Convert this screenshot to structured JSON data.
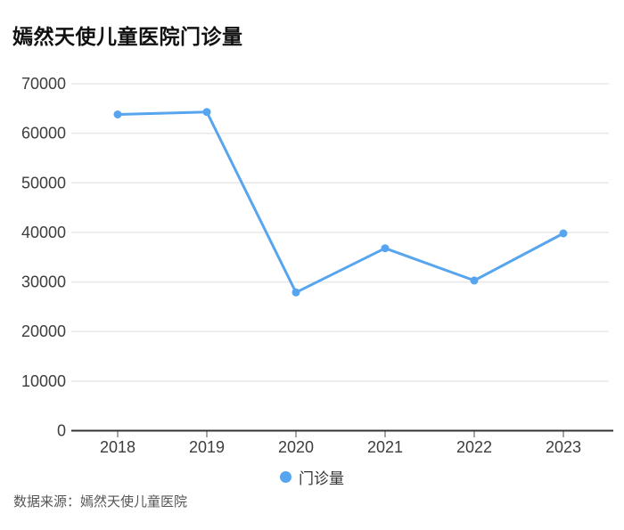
{
  "title": "嫣然天使儿童医院门诊量",
  "legend": {
    "label": "门诊量"
  },
  "source": "数据来源：嫣然天使儿童医院",
  "colors": {
    "line": "#56a5ee",
    "point": "#56a5ee",
    "grid": "#e8e8e8",
    "axis": "#333333",
    "tick": "#888888",
    "axis_label": "#3d3d3d",
    "title": "#111111",
    "legend_text": "#333333",
    "source_text": "#555555",
    "background": "#ffffff"
  },
  "chart_data": {
    "type": "line",
    "title": "嫣然天使儿童医院门诊量",
    "categories": [
      "2018",
      "2019",
      "2020",
      "2021",
      "2022",
      "2023"
    ],
    "series": [
      {
        "name": "门诊量",
        "values": [
          63800,
          64300,
          27900,
          36800,
          30300,
          39800
        ]
      }
    ],
    "xlabel": "",
    "ylabel": "",
    "ylim": [
      0,
      70000
    ],
    "ytick_step": 10000,
    "ytick_labels": [
      "0",
      "10000",
      "20000",
      "30000",
      "40000",
      "50000",
      "60000",
      "70000"
    ],
    "grid": true,
    "legend_position": "bottom",
    "source": "数据来源：嫣然天使儿童医院"
  }
}
